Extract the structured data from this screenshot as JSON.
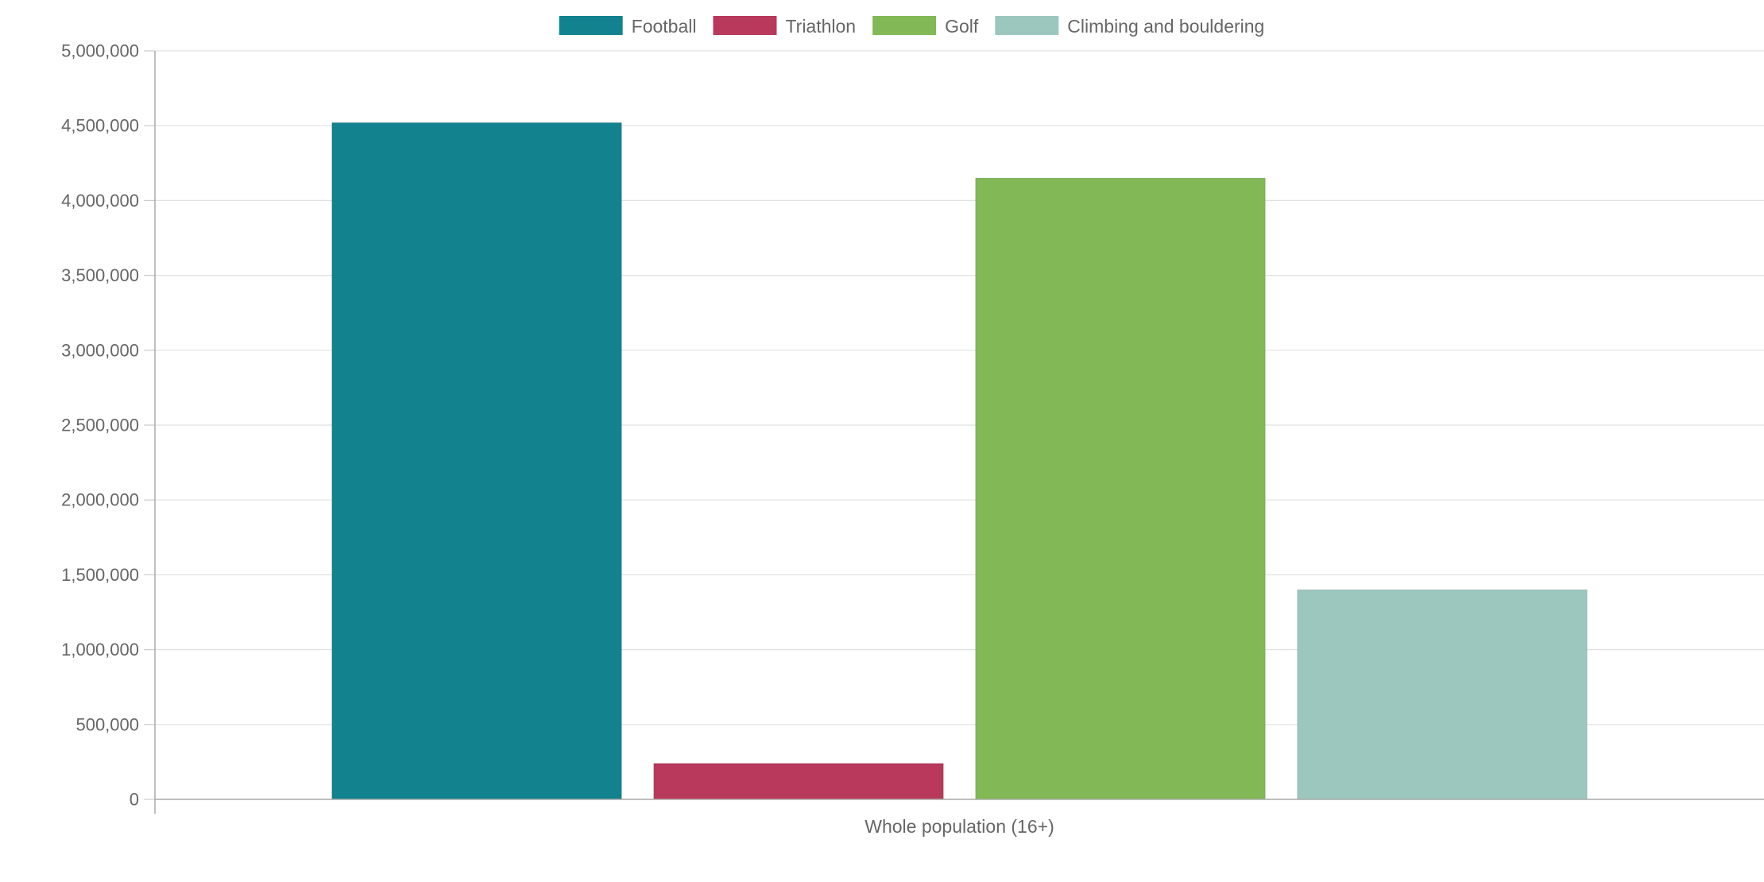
{
  "chart_data": {
    "type": "bar",
    "title": "",
    "xlabel": "",
    "ylabel": "",
    "categories": [
      "Whole population (16+)"
    ],
    "series": [
      {
        "name": "Football",
        "values": [
          4520000
        ],
        "color": "#12828F"
      },
      {
        "name": "Triathlon",
        "values": [
          240000
        ],
        "color": "#B8395B"
      },
      {
        "name": "Golf",
        "values": [
          4150000
        ],
        "color": "#82B855"
      },
      {
        "name": "Climbing and bouldering",
        "values": [
          1400000
        ],
        "color": "#9BC7BF"
      }
    ],
    "ylim": [
      0,
      5000000
    ],
    "ytick_step": 500000,
    "ytick_labels": [
      "0",
      "500,000",
      "1,000,000",
      "1,500,000",
      "2,000,000",
      "2,500,000",
      "3,000,000",
      "3,500,000",
      "4,000,000",
      "4,500,000",
      "5,000,000"
    ],
    "grid": true,
    "legend": "top-center"
  }
}
